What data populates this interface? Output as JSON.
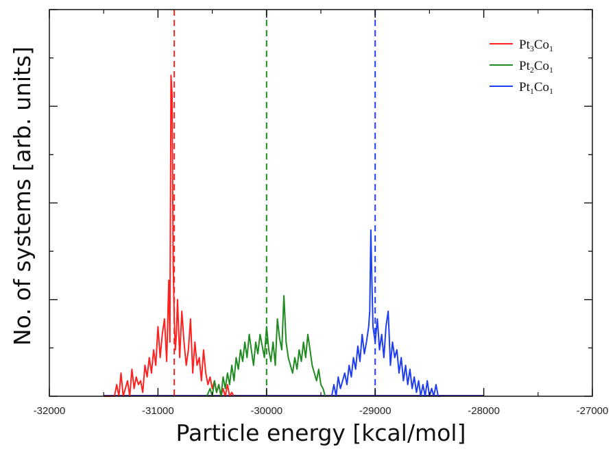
{
  "chart_data": {
    "type": "line",
    "title": "",
    "xlabel": "Particle energy [kcal/mol]",
    "ylabel": "No. of systems [arb. units]",
    "xlim": [
      -32000,
      -27000
    ],
    "ylim": [
      0,
      100
    ],
    "x_ticks": [
      -32000,
      -31000,
      -30000,
      -29000,
      -28000,
      -27000
    ],
    "x_tick_labels": [
      "-32000",
      "-31000",
      "-30000",
      "-29000",
      "-28000",
      "-27000"
    ],
    "y_tick_labels_shown": false,
    "grid": false,
    "legend_position": "top-right",
    "series": [
      {
        "name": "Pt3Co1",
        "legend_main": "Pt",
        "legend_sub1": "3",
        "legend_mid": "Co",
        "legend_sub2": "1",
        "color": "#ff2020",
        "mean": -30850,
        "x": [
          -31500,
          -31450,
          -31400,
          -31380,
          -31360,
          -31340,
          -31320,
          -31300,
          -31280,
          -31260,
          -31240,
          -31220,
          -31200,
          -31180,
          -31160,
          -31140,
          -31120,
          -31100,
          -31080,
          -31060,
          -31040,
          -31020,
          -31000,
          -30980,
          -30960,
          -30940,
          -30920,
          -30900,
          -30890,
          -30880,
          -30870,
          -30860,
          -30850,
          -30840,
          -30830,
          -30820,
          -30800,
          -30780,
          -30760,
          -30740,
          -30720,
          -30700,
          -30680,
          -30660,
          -30640,
          -30620,
          -30600,
          -30580,
          -30560,
          -30540,
          -30520,
          -30500,
          -30480,
          -30460,
          -30440,
          -30420,
          -30400,
          -30380,
          -30360,
          -30340,
          -30320,
          -30300
        ],
        "y": [
          0,
          0,
          0,
          3,
          0,
          6,
          0,
          2,
          4,
          0,
          7,
          2,
          5,
          3,
          4,
          1,
          8,
          5,
          10,
          6,
          12,
          8,
          18,
          10,
          16,
          20,
          9,
          30,
          14,
          83,
          78,
          34,
          20,
          12,
          16,
          25,
          10,
          22,
          14,
          8,
          12,
          20,
          6,
          14,
          8,
          10,
          4,
          12,
          6,
          3,
          5,
          2,
          4,
          1,
          3,
          0,
          2,
          0,
          3,
          0,
          1,
          0
        ]
      },
      {
        "name": "Pt2Co1",
        "legend_main": "Pt",
        "legend_sub1": "2",
        "legend_mid": "Co",
        "legend_sub2": "1",
        "color": "#1f8a1f",
        "mean": -30000,
        "x": [
          -30550,
          -30520,
          -30500,
          -30480,
          -30460,
          -30440,
          -30420,
          -30400,
          -30380,
          -30360,
          -30340,
          -30320,
          -30300,
          -30280,
          -30260,
          -30240,
          -30220,
          -30200,
          -30180,
          -30160,
          -30140,
          -30120,
          -30100,
          -30080,
          -30060,
          -30040,
          -30020,
          -30000,
          -29980,
          -29960,
          -29940,
          -29920,
          -29900,
          -29880,
          -29860,
          -29840,
          -29820,
          -29800,
          -29780,
          -29760,
          -29740,
          -29720,
          -29700,
          -29680,
          -29660,
          -29640,
          -29620,
          -29600,
          -29580,
          -29560,
          -29540,
          -29520,
          -29500,
          -29480,
          -29460
        ],
        "y": [
          0,
          2,
          0,
          4,
          1,
          3,
          0,
          5,
          2,
          6,
          3,
          8,
          4,
          10,
          7,
          12,
          9,
          14,
          10,
          16,
          12,
          8,
          14,
          11,
          16,
          13,
          10,
          18,
          12,
          9,
          14,
          8,
          20,
          15,
          12,
          26,
          14,
          10,
          8,
          6,
          10,
          7,
          12,
          9,
          14,
          10,
          16,
          12,
          8,
          6,
          4,
          7,
          3,
          2,
          0
        ]
      },
      {
        "name": "Pt1Co1",
        "legend_main": "Pt",
        "legend_sub1": "1",
        "legend_mid": "Co",
        "legend_sub2": "1",
        "color": "#1e3cf0",
        "mean": -29000,
        "x": [
          -29400,
          -29380,
          -29360,
          -29340,
          -29320,
          -29300,
          -29280,
          -29260,
          -29240,
          -29220,
          -29200,
          -29180,
          -29160,
          -29140,
          -29120,
          -29100,
          -29080,
          -29060,
          -29050,
          -29040,
          -29030,
          -29020,
          -29000,
          -28980,
          -28960,
          -28940,
          -28920,
          -28900,
          -28880,
          -28860,
          -28840,
          -28820,
          -28800,
          -28780,
          -28760,
          -28740,
          -28720,
          -28700,
          -28680,
          -28660,
          -28640,
          -28620,
          -28600,
          -28580,
          -28560,
          -28540,
          -28520,
          -28500,
          -28480,
          -28460,
          -28440,
          -28420,
          -28400
        ],
        "y": [
          0,
          3,
          0,
          5,
          2,
          4,
          6,
          3,
          8,
          5,
          10,
          7,
          13,
          9,
          16,
          11,
          14,
          18,
          22,
          43,
          30,
          18,
          14,
          20,
          12,
          16,
          10,
          18,
          22,
          8,
          14,
          10,
          12,
          6,
          10,
          4,
          8,
          3,
          7,
          2,
          5,
          1,
          4,
          0,
          3,
          0,
          4,
          0,
          2,
          0,
          3,
          0,
          0
        ]
      }
    ]
  }
}
